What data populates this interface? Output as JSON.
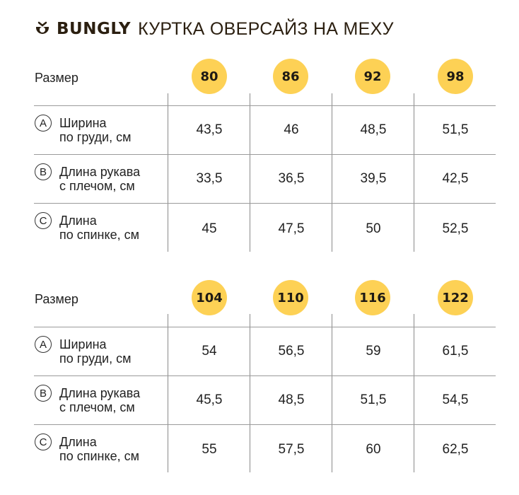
{
  "header": {
    "brand": "BUNGLY",
    "title": "КУРТКА ОВЕРСАЙЗ НА МЕХУ"
  },
  "colors": {
    "accent": "#fdd155",
    "brand_text": "#2b1f10"
  },
  "icons": {
    "logo": "bungly-logo-icon"
  },
  "tables": [
    {
      "size_label": "Размер",
      "sizes": [
        "80",
        "86",
        "92",
        "98"
      ],
      "rows": [
        {
          "letter": "A",
          "label_line1": "Ширина",
          "label_line2": "по груди, см",
          "values": [
            "43,5",
            "46",
            "48,5",
            "51,5"
          ]
        },
        {
          "letter": "B",
          "label_line1": "Длина рукава",
          "label_line2": "с плечом, см",
          "values": [
            "33,5",
            "36,5",
            "39,5",
            "42,5"
          ]
        },
        {
          "letter": "C",
          "label_line1": "Длина",
          "label_line2": "по спинке, см",
          "values": [
            "45",
            "47,5",
            "50",
            "52,5"
          ]
        }
      ]
    },
    {
      "size_label": "Размер",
      "sizes": [
        "104",
        "110",
        "116",
        "122"
      ],
      "rows": [
        {
          "letter": "A",
          "label_line1": "Ширина",
          "label_line2": "по груди, см",
          "values": [
            "54",
            "56,5",
            "59",
            "61,5"
          ]
        },
        {
          "letter": "B",
          "label_line1": "Длина рукава",
          "label_line2": "с плечом, см",
          "values": [
            "45,5",
            "48,5",
            "51,5",
            "54,5"
          ]
        },
        {
          "letter": "C",
          "label_line1": "Длина",
          "label_line2": "по спинке, см",
          "values": [
            "55",
            "57,5",
            "60",
            "62,5"
          ]
        }
      ]
    }
  ]
}
